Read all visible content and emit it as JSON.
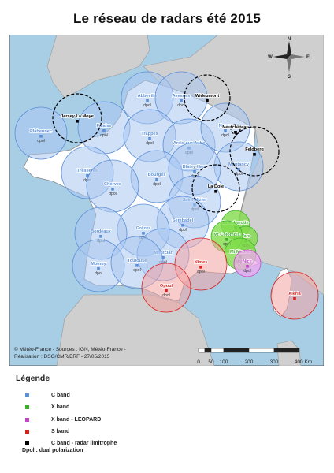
{
  "title": "Le réseau de radars été 2015",
  "colors": {
    "sea": "#a8cee6",
    "land_france": "#ffffff",
    "land_neighbor": "#cfcfcf",
    "c_band": "#5b8fd6",
    "c_band_fill": "#a9c6f0",
    "x_band": "#3fae2c",
    "x_band_fill": "#7fdc4a",
    "x_band_leopard": "#c445c8",
    "x_band_leopard_fill": "#f0a6f0",
    "s_band": "#d62020",
    "s_band_fill": "#f4a3a3",
    "neighbor": "#000000"
  },
  "copyright": {
    "line1": "© Météo-France - Sources : IGN, Météo-France -",
    "line2": "Réalisation : DSO/CMR/ERF - 27/05/2015"
  },
  "scale": {
    "ticks": [
      "0",
      "50",
      "100",
      "200",
      "300",
      "400 Km"
    ]
  },
  "compass": {
    "north": "N",
    "south": "S",
    "east": "E",
    "west": "W"
  },
  "radars": [
    {
      "name": "Abbeville",
      "band": "c",
      "dpol": true
    },
    {
      "name": "Avesnes",
      "band": "c",
      "dpol": true
    },
    {
      "name": "Wideumont",
      "band": "neighbor",
      "dpol": false
    },
    {
      "name": "Jersey La Moye",
      "band": "neighbor",
      "dpol": false
    },
    {
      "name": "Plabennec",
      "band": "c",
      "dpol": true
    },
    {
      "name": "Falaise",
      "band": "c",
      "dpol": true
    },
    {
      "name": "Trappes",
      "band": "c",
      "dpol": true
    },
    {
      "name": "Arcis-sur-Aube",
      "band": "c",
      "dpol": true
    },
    {
      "name": "Nancy",
      "band": "c",
      "dpol": true
    },
    {
      "name": "Neufchateau",
      "band": "neighbor",
      "dpol": false
    },
    {
      "name": "Feldberg",
      "band": "neighbor",
      "dpol": false
    },
    {
      "name": "Treillières",
      "band": "c",
      "dpol": true
    },
    {
      "name": "Montancy",
      "band": "c",
      "dpol": true
    },
    {
      "name": "Bourges",
      "band": "c",
      "dpol": true
    },
    {
      "name": "Blaisy-Haut",
      "band": "c",
      "dpol": true
    },
    {
      "name": "Cherves",
      "band": "c",
      "dpol": true
    },
    {
      "name": "La Dole",
      "band": "neighbor",
      "dpol": false
    },
    {
      "name": "Saint-Nizier",
      "band": "c",
      "dpol": true
    },
    {
      "name": "Moucherotte",
      "band": "x",
      "dpol": true
    },
    {
      "name": "Sembadel",
      "band": "c",
      "dpol": true
    },
    {
      "name": "Grèzes",
      "band": "c",
      "dpol": true
    },
    {
      "name": "Bordeaux",
      "band": "c",
      "dpol": true
    },
    {
      "name": "Vars",
      "band": "x",
      "dpol": true
    },
    {
      "name": "Mt Colombis",
      "band": "x",
      "dpol": true
    },
    {
      "name": "Mt Maurel",
      "band": "x",
      "dpol": true
    },
    {
      "name": "Montclar",
      "band": "c",
      "dpol": true
    },
    {
      "name": "Momuy",
      "band": "c",
      "dpol": true
    },
    {
      "name": "Toulouse",
      "band": "c",
      "dpol": true
    },
    {
      "name": "Nîmes",
      "band": "s",
      "dpol": true
    },
    {
      "name": "Nice",
      "band": "x_leopard",
      "dpol": true
    },
    {
      "name": "Opoul",
      "band": "s",
      "dpol": true
    },
    {
      "name": "Aléria",
      "band": "s",
      "dpol": false
    }
  ],
  "legend": {
    "title": "Légende",
    "items": [
      {
        "label": "C band",
        "color": "#5b8fd6"
      },
      {
        "label": "X band",
        "color": "#3fae2c"
      },
      {
        "label": "X band - LEOPARD",
        "color": "#c445c8"
      },
      {
        "label": "S band",
        "color": "#d62020"
      },
      {
        "label": "C band - radar limitrophe",
        "color": "#000000"
      }
    ],
    "dpol_note": "Dpol : dual polarization"
  },
  "dpol_label": "dpol"
}
